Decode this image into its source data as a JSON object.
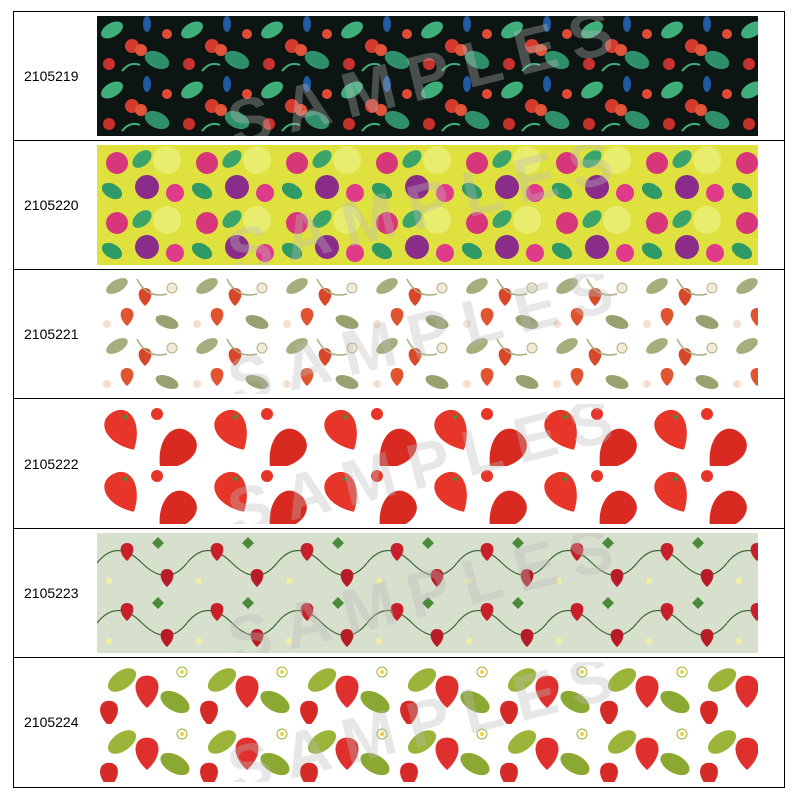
{
  "watermark": "SAMPLES",
  "rows": [
    {
      "code": "2105219"
    },
    {
      "code": "2105220"
    },
    {
      "code": "2105221"
    },
    {
      "code": "2105222"
    },
    {
      "code": "2105223"
    },
    {
      "code": "2105224"
    }
  ]
}
